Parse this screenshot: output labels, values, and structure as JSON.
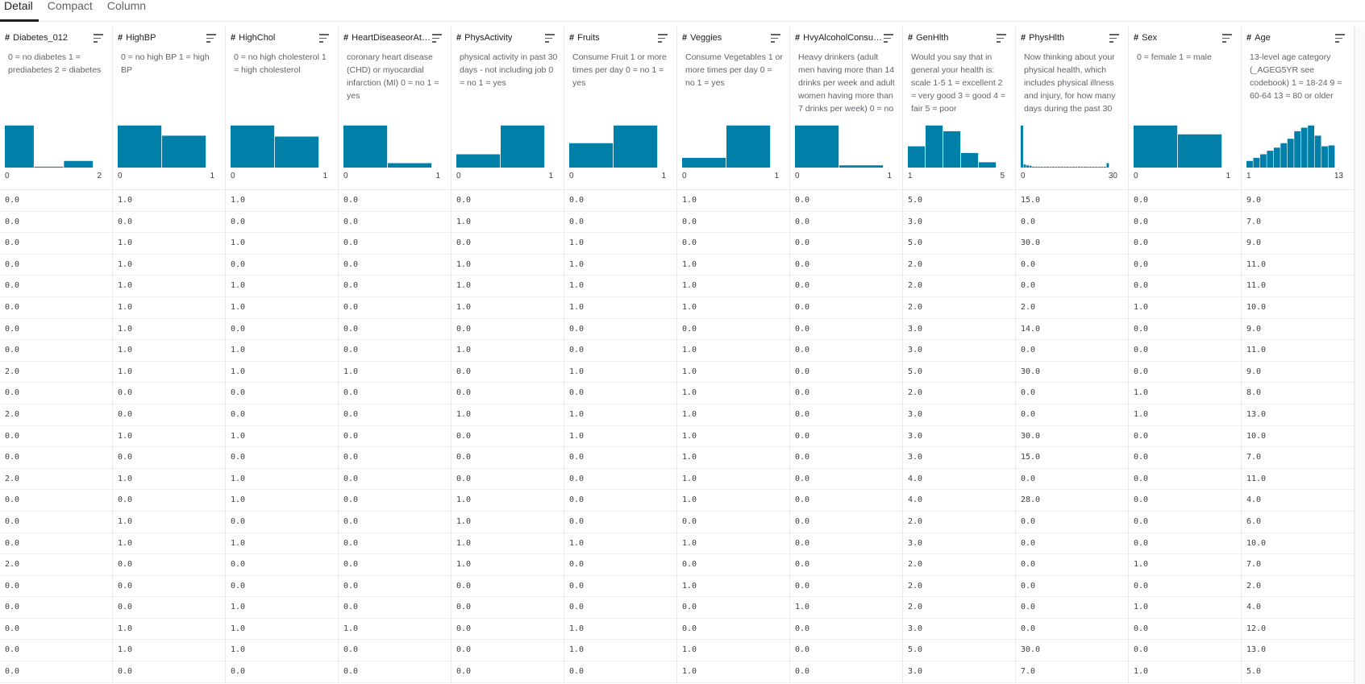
{
  "tabs": [
    {
      "label": "Detail",
      "active": true
    },
    {
      "label": "Compact",
      "active": false
    },
    {
      "label": "Column",
      "active": false
    }
  ],
  "bar_color": "#0080a8",
  "columns": [
    {
      "name": "Diabetes_012",
      "desc": "0 = no diabetes 1 = prediabetes 2 = diabetes",
      "hist": [
        0.95,
        0.02,
        0.15
      ],
      "min": "0",
      "max": "2"
    },
    {
      "name": "HighBP",
      "desc": "0 = no high BP 1 = high BP",
      "hist": [
        0.95,
        0.72
      ],
      "min": "0",
      "max": "1"
    },
    {
      "name": "HighChol",
      "desc": "0 = no high cholesterol 1 = high cholesterol",
      "hist": [
        0.95,
        0.7
      ],
      "min": "0",
      "max": "1"
    },
    {
      "name": "HeartDiseaseorAttack",
      "desc": "coronary heart disease (CHD) or myocardial infarction (MI) 0 = no 1 = yes",
      "hist": [
        0.95,
        0.1
      ],
      "min": "0",
      "max": "1"
    },
    {
      "name": "PhysActivity",
      "desc": "physical activity in past 30 days - not including job 0 = no 1 = yes",
      "hist": [
        0.3,
        0.95
      ],
      "min": "0",
      "max": "1"
    },
    {
      "name": "Fruits",
      "desc": "Consume Fruit 1 or more times per day 0 = no 1 = yes",
      "hist": [
        0.55,
        0.95
      ],
      "min": "0",
      "max": "1"
    },
    {
      "name": "Veggies",
      "desc": "Consume Vegetables 1 or more times per day 0 = no 1 = yes",
      "hist": [
        0.22,
        0.95
      ],
      "min": "0",
      "max": "1"
    },
    {
      "name": "HvyAlcoholConsump",
      "desc": "Heavy drinkers (adult men having more than 14 drinks per week and adult women having more than 7 drinks per week) 0 = no",
      "hist": [
        0.95,
        0.05
      ],
      "min": "0",
      "max": "1"
    },
    {
      "name": "GenHlth",
      "desc": "Would you say that in general your health is: scale 1-5 1 = excellent 2 = very good 3 = good 4 = fair 5 = poor",
      "hist": [
        0.48,
        0.95,
        0.82,
        0.33,
        0.12
      ],
      "min": "1",
      "max": "5"
    },
    {
      "name": "PhysHlth",
      "desc": "Now thinking about your physical health, which includes physical illness and injury, for how many days during the past 30",
      "hist": [
        0.95,
        0.07,
        0.05,
        0.04,
        0.02,
        0.02,
        0.02,
        0.01,
        0.01,
        0.02,
        0.01,
        0.01,
        0.01,
        0.01,
        0.02,
        0.01,
        0.01,
        0.01,
        0.01,
        0.01,
        0.02,
        0.01,
        0.01,
        0.01,
        0.01,
        0.01,
        0.01,
        0.01,
        0.01,
        0.01,
        0.1
      ],
      "min": "0",
      "max": "30"
    },
    {
      "name": "Sex",
      "desc": "0 = female 1 = male",
      "hist": [
        0.95,
        0.75
      ],
      "min": "0",
      "max": "1"
    },
    {
      "name": "Age",
      "desc": "13-level age category (_AGEG5YR see codebook) 1 = 18-24 9 = 60-64 13 = 80 or older",
      "hist": [
        0.15,
        0.22,
        0.3,
        0.38,
        0.45,
        0.55,
        0.65,
        0.82,
        0.9,
        0.95,
        0.72,
        0.48,
        0.5
      ],
      "min": "1",
      "max": "13"
    }
  ],
  "rows": [
    [
      "0.0",
      "1.0",
      "1.0",
      "0.0",
      "0.0",
      "0.0",
      "1.0",
      "0.0",
      "5.0",
      "15.0",
      "0.0",
      "9.0"
    ],
    [
      "0.0",
      "0.0",
      "0.0",
      "0.0",
      "1.0",
      "0.0",
      "0.0",
      "0.0",
      "3.0",
      "0.0",
      "0.0",
      "7.0"
    ],
    [
      "0.0",
      "1.0",
      "1.0",
      "0.0",
      "0.0",
      "1.0",
      "0.0",
      "0.0",
      "5.0",
      "30.0",
      "0.0",
      "9.0"
    ],
    [
      "0.0",
      "1.0",
      "0.0",
      "0.0",
      "1.0",
      "1.0",
      "1.0",
      "0.0",
      "2.0",
      "0.0",
      "0.0",
      "11.0"
    ],
    [
      "0.0",
      "1.0",
      "1.0",
      "0.0",
      "1.0",
      "1.0",
      "1.0",
      "0.0",
      "2.0",
      "0.0",
      "0.0",
      "11.0"
    ],
    [
      "0.0",
      "1.0",
      "1.0",
      "0.0",
      "1.0",
      "1.0",
      "1.0",
      "0.0",
      "2.0",
      "2.0",
      "1.0",
      "10.0"
    ],
    [
      "0.0",
      "1.0",
      "0.0",
      "0.0",
      "0.0",
      "0.0",
      "0.0",
      "0.0",
      "3.0",
      "14.0",
      "0.0",
      "9.0"
    ],
    [
      "0.0",
      "1.0",
      "1.0",
      "0.0",
      "1.0",
      "0.0",
      "1.0",
      "0.0",
      "3.0",
      "0.0",
      "0.0",
      "11.0"
    ],
    [
      "2.0",
      "1.0",
      "1.0",
      "1.0",
      "0.0",
      "1.0",
      "1.0",
      "0.0",
      "5.0",
      "30.0",
      "0.0",
      "9.0"
    ],
    [
      "0.0",
      "0.0",
      "0.0",
      "0.0",
      "0.0",
      "0.0",
      "1.0",
      "0.0",
      "2.0",
      "0.0",
      "1.0",
      "8.0"
    ],
    [
      "2.0",
      "0.0",
      "0.0",
      "0.0",
      "1.0",
      "1.0",
      "1.0",
      "0.0",
      "3.0",
      "0.0",
      "1.0",
      "13.0"
    ],
    [
      "0.0",
      "1.0",
      "1.0",
      "0.0",
      "0.0",
      "1.0",
      "1.0",
      "0.0",
      "3.0",
      "30.0",
      "0.0",
      "10.0"
    ],
    [
      "0.0",
      "0.0",
      "0.0",
      "0.0",
      "0.0",
      "0.0",
      "1.0",
      "0.0",
      "3.0",
      "15.0",
      "0.0",
      "7.0"
    ],
    [
      "2.0",
      "1.0",
      "1.0",
      "0.0",
      "0.0",
      "0.0",
      "1.0",
      "0.0",
      "4.0",
      "0.0",
      "0.0",
      "11.0"
    ],
    [
      "0.0",
      "0.0",
      "1.0",
      "0.0",
      "1.0",
      "0.0",
      "1.0",
      "0.0",
      "4.0",
      "28.0",
      "0.0",
      "4.0"
    ],
    [
      "0.0",
      "1.0",
      "0.0",
      "0.0",
      "1.0",
      "0.0",
      "0.0",
      "0.0",
      "2.0",
      "0.0",
      "0.0",
      "6.0"
    ],
    [
      "0.0",
      "1.0",
      "1.0",
      "0.0",
      "1.0",
      "1.0",
      "1.0",
      "0.0",
      "3.0",
      "0.0",
      "0.0",
      "10.0"
    ],
    [
      "2.0",
      "0.0",
      "0.0",
      "0.0",
      "1.0",
      "0.0",
      "0.0",
      "0.0",
      "2.0",
      "0.0",
      "1.0",
      "7.0"
    ],
    [
      "0.0",
      "0.0",
      "0.0",
      "0.0",
      "0.0",
      "0.0",
      "1.0",
      "0.0",
      "2.0",
      "0.0",
      "0.0",
      "2.0"
    ],
    [
      "0.0",
      "0.0",
      "1.0",
      "0.0",
      "0.0",
      "0.0",
      "0.0",
      "1.0",
      "2.0",
      "0.0",
      "1.0",
      "4.0"
    ],
    [
      "0.0",
      "1.0",
      "1.0",
      "1.0",
      "0.0",
      "1.0",
      "0.0",
      "0.0",
      "3.0",
      "0.0",
      "0.0",
      "12.0"
    ],
    [
      "0.0",
      "1.0",
      "1.0",
      "0.0",
      "0.0",
      "1.0",
      "1.0",
      "0.0",
      "5.0",
      "30.0",
      "0.0",
      "13.0"
    ],
    [
      "0.0",
      "0.0",
      "0.0",
      "0.0",
      "0.0",
      "0.0",
      "1.0",
      "0.0",
      "3.0",
      "7.0",
      "1.0",
      "5.0"
    ]
  ]
}
